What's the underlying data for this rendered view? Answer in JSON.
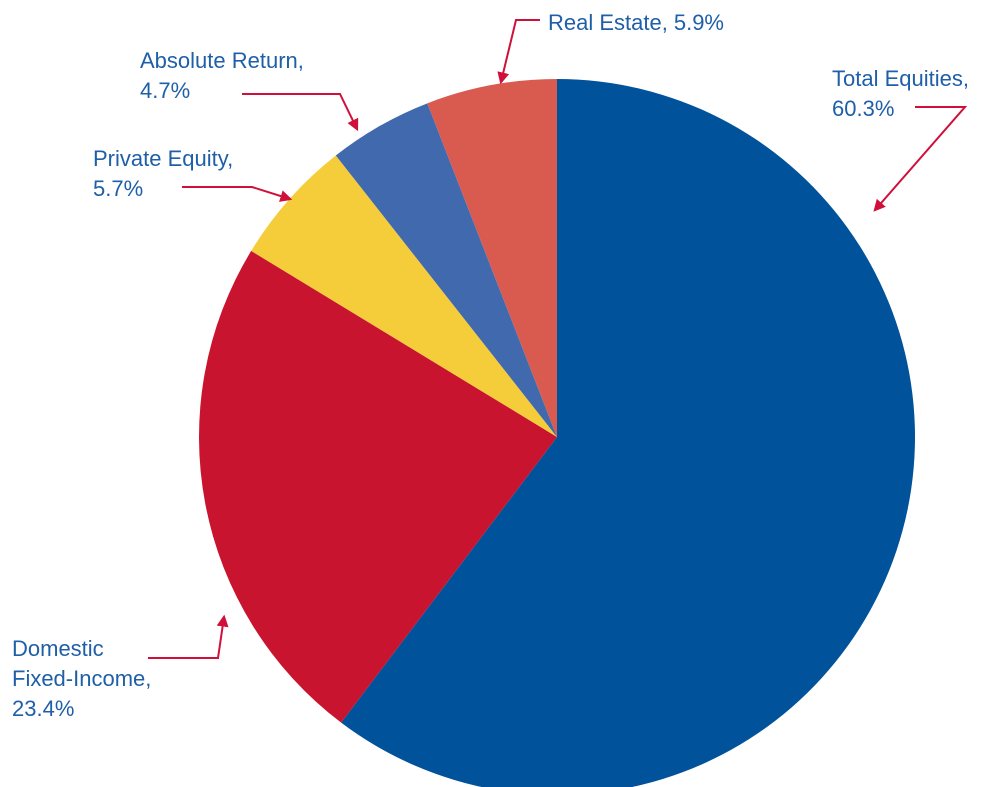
{
  "chart_data": {
    "type": "pie",
    "categories": [
      "Total Equities,",
      "Domestic Fixed-Income,",
      "Private Equity,",
      "Absolute Return,",
      "Real Estate,"
    ],
    "values": [
      60.3,
      23.4,
      5.7,
      4.7,
      5.9
    ],
    "value_labels": [
      "60.3%",
      "23.4%",
      "5.7%",
      "4.7%",
      "5.9%"
    ],
    "colors": [
      "#00529b",
      "#c8142f",
      "#f5cc3a",
      "#4169ad",
      "#d95a4e"
    ]
  }
}
